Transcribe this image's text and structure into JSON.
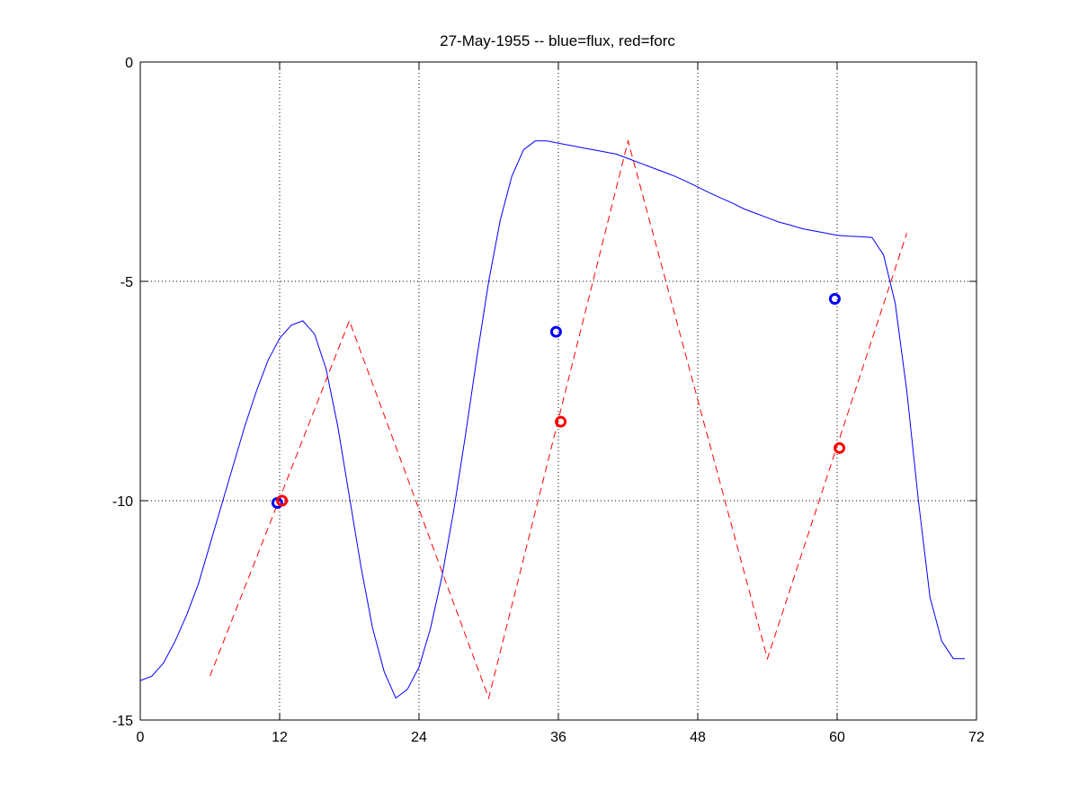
{
  "chart_data": {
    "type": "line",
    "title": "27-May-1955 -- blue=flux, red=forc",
    "xlim": [
      0,
      72
    ],
    "ylim": [
      -15,
      0
    ],
    "grid": true,
    "x_ticks": [
      0,
      12,
      24,
      36,
      48,
      60,
      72
    ],
    "y_ticks": [
      0,
      -5,
      -10,
      -15
    ],
    "x_tick_labels": [
      "0",
      "12",
      "24",
      "36",
      "48",
      "60",
      "72"
    ],
    "y_tick_labels": [
      "0",
      "-5",
      "-10",
      "-15"
    ],
    "colors": {
      "flux": "#0000ff",
      "forc": "#ff0000",
      "grid": "#000000",
      "axes": "#000000"
    },
    "series": [
      {
        "style": "solid",
        "color": "#0000ff",
        "x": [
          0,
          1,
          2,
          3,
          4,
          5,
          6,
          7,
          8,
          9,
          10,
          11,
          12,
          13,
          14,
          15,
          16,
          17,
          18,
          19,
          20,
          21,
          22,
          23,
          24,
          25,
          26,
          27,
          28,
          29,
          30,
          31,
          32,
          33,
          34,
          35,
          36,
          37,
          38,
          39,
          40,
          41,
          42,
          43,
          44,
          45,
          46,
          47,
          48,
          49,
          50,
          51,
          52,
          53,
          54,
          55,
          56,
          57,
          58,
          59,
          60,
          61,
          62,
          63,
          64,
          65,
          66,
          67,
          68,
          69,
          70,
          71
        ],
        "y": [
          -14.1,
          -14.0,
          -13.7,
          -13.2,
          -12.6,
          -11.9,
          -11.0,
          -10.1,
          -9.2,
          -8.3,
          -7.5,
          -6.8,
          -6.3,
          -6.0,
          -5.9,
          -6.2,
          -7.0,
          -8.3,
          -9.9,
          -11.5,
          -12.9,
          -13.9,
          -14.5,
          -14.3,
          -13.8,
          -12.9,
          -11.7,
          -10.2,
          -8.5,
          -6.7,
          -5.0,
          -3.6,
          -2.6,
          -2.0,
          -1.8,
          -1.8,
          -1.85,
          -1.9,
          -1.95,
          -2.0,
          -2.05,
          -2.1,
          -2.2,
          -2.3,
          -2.4,
          -2.5,
          -2.6,
          -2.72,
          -2.85,
          -2.98,
          -3.1,
          -3.22,
          -3.35,
          -3.45,
          -3.55,
          -3.65,
          -3.72,
          -3.8,
          -3.85,
          -3.9,
          -3.95,
          -3.97,
          -3.98,
          -4.0,
          -4.4,
          -5.5,
          -7.5,
          -10.0,
          -12.2,
          -13.2,
          -13.6,
          -13.6
        ]
      },
      {
        "style": "dashed",
        "color": "#ff0000",
        "x": [
          6,
          18,
          30,
          42,
          54,
          66
        ],
        "y": [
          -14.0,
          -5.9,
          -14.5,
          -1.8,
          -13.6,
          -3.9
        ]
      }
    ],
    "markers": [
      {
        "color": "#0000ff",
        "x": [
          11.8,
          35.8,
          59.8
        ],
        "y": [
          -10.05,
          -6.15,
          -5.4
        ]
      },
      {
        "color": "#ff0000",
        "x": [
          12.2,
          36.2,
          60.2
        ],
        "y": [
          -10.0,
          -8.2,
          -8.8
        ]
      }
    ]
  }
}
